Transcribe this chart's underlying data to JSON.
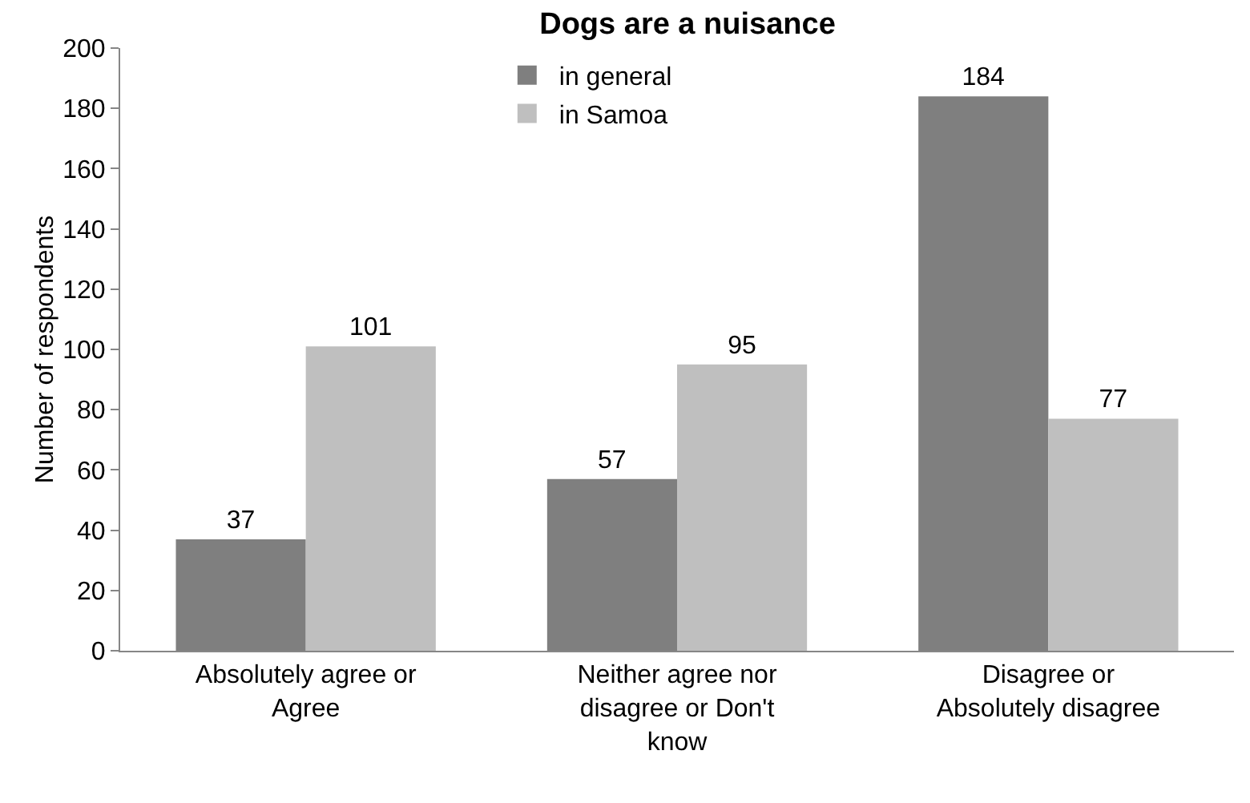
{
  "chart_data": {
    "type": "bar",
    "title": "Dogs are a nuisance",
    "ylabel": "Number of respondents",
    "categories": [
      "Absolutely agree or Agree",
      "Neither agree nor disagree or Don't know",
      "Disagree or Absolutely disagree"
    ],
    "series": [
      {
        "name": "in general",
        "color": "#7f7f7f",
        "values": [
          37,
          57,
          184
        ]
      },
      {
        "name": "in Samoa",
        "color": "#bfbfbf",
        "values": [
          101,
          95,
          77
        ]
      }
    ],
    "ylim": [
      0,
      200
    ],
    "yticks": [
      0,
      20,
      40,
      60,
      80,
      100,
      120,
      140,
      160,
      180,
      200
    ],
    "grid": false,
    "legend": "top",
    "data_labels": true
  }
}
